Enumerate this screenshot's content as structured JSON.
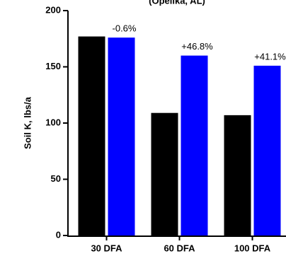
{
  "chart_data": {
    "type": "bar",
    "title": "(Opelika, AL)",
    "ylabel": "Soil K, lbs/a",
    "categories": [
      "30 DFA",
      "60 DFA",
      "100 DFA"
    ],
    "series": [
      {
        "color": "#000000",
        "values": [
          177,
          109,
          107
        ]
      },
      {
        "color": "#0000ff",
        "values": [
          176,
          160,
          151
        ]
      }
    ],
    "annotations": [
      "-0.6%",
      "+46.8%",
      "+41.1%"
    ],
    "ylim": [
      0,
      200
    ],
    "yticks": [
      0,
      50,
      100,
      150,
      200
    ],
    "grid": false
  }
}
